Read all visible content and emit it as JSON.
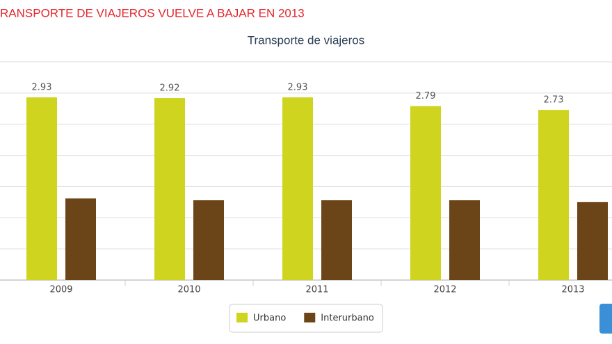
{
  "header": {
    "title": "RANSPORTE DE VIAJEROS VUELVE A BAJAR EN 2013"
  },
  "chart_data": {
    "type": "bar",
    "title": "Transporte de viajeros",
    "categories": [
      "2009",
      "2010",
      "2011",
      "2012",
      "2013"
    ],
    "series": [
      {
        "name": "Urbano",
        "color": "#cfd41f",
        "values": [
          2.93,
          2.92,
          2.93,
          2.79,
          2.73
        ],
        "data_labels": true
      },
      {
        "name": "Interurbano",
        "color": "#6b4517",
        "values": [
          1.31,
          1.28,
          1.28,
          1.28,
          1.25
        ],
        "data_labels": false
      }
    ],
    "ylim": [
      0,
      3.5
    ],
    "yticks": [
      0,
      0.5,
      1,
      1.5,
      2,
      2.5,
      3,
      3.5
    ],
    "grid": true,
    "legend": "bottom"
  }
}
